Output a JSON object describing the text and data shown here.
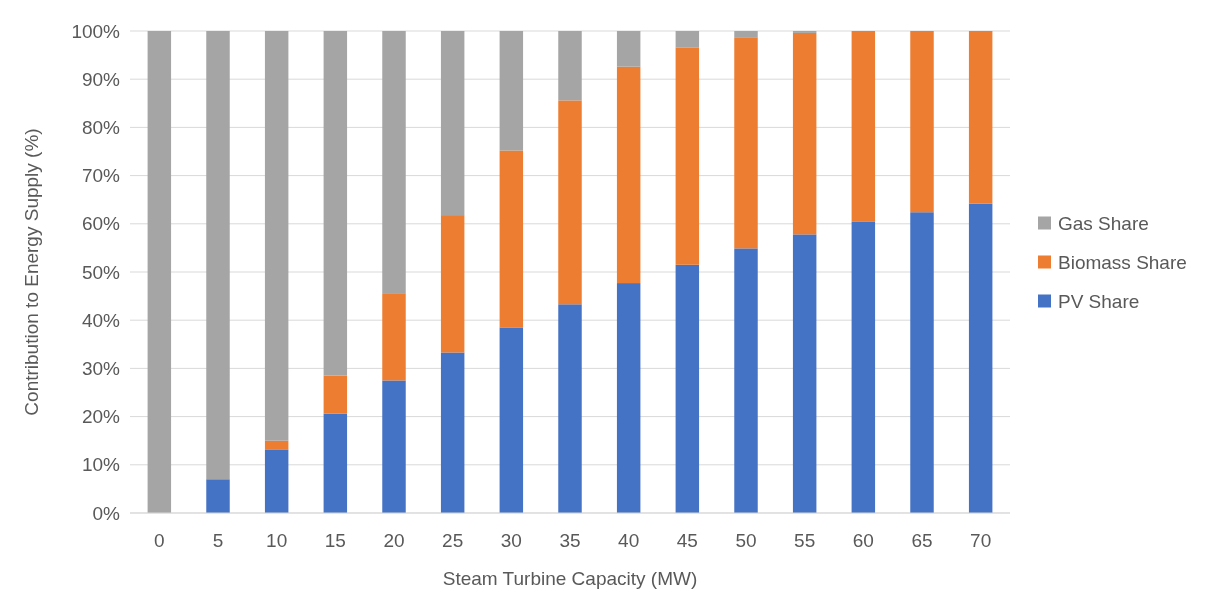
{
  "chart_data": {
    "type": "bar",
    "stacked": true,
    "xlabel": "Steam Turbine Capacity (MW)",
    "ylabel": "Contribution to  Energy Supply (%)",
    "categories": [
      "0",
      "5",
      "10",
      "15",
      "20",
      "25",
      "30",
      "35",
      "40",
      "45",
      "50",
      "55",
      "60",
      "65",
      "70"
    ],
    "series": [
      {
        "name": "PV Share",
        "color": "#4472c4",
        "values": [
          0,
          7,
          13.2,
          20.6,
          27.5,
          33.3,
          38.5,
          43.3,
          47.7,
          51.5,
          54.9,
          57.8,
          60.4,
          62.4,
          64.2
        ]
      },
      {
        "name": "Biomass Share",
        "color": "#ed7d31",
        "values": [
          0,
          0,
          1.8,
          7.9,
          18.1,
          28.5,
          36.7,
          42.3,
          44.9,
          45.1,
          43.8,
          41.8,
          39.6,
          37.6,
          35.8
        ]
      },
      {
        "name": "Gas Share",
        "color": "#a5a5a5",
        "values": [
          100,
          93,
          85,
          71.5,
          54.4,
          38.2,
          24.8,
          14.4,
          7.4,
          3.4,
          1.3,
          0.4,
          0,
          0,
          0
        ]
      }
    ],
    "ylim": [
      0,
      100
    ],
    "yticks": [
      {
        "value": 0,
        "label": "0%"
      },
      {
        "value": 10,
        "label": "10%"
      },
      {
        "value": 20,
        "label": "20%"
      },
      {
        "value": 30,
        "label": "30%"
      },
      {
        "value": 40,
        "label": "40%"
      },
      {
        "value": 50,
        "label": "50%"
      },
      {
        "value": 60,
        "label": "60%"
      },
      {
        "value": 70,
        "label": "70%"
      },
      {
        "value": 80,
        "label": "80%"
      },
      {
        "value": 90,
        "label": "90%"
      },
      {
        "value": 100,
        "label": "100%"
      }
    ],
    "grid": "y",
    "legend": "right"
  }
}
